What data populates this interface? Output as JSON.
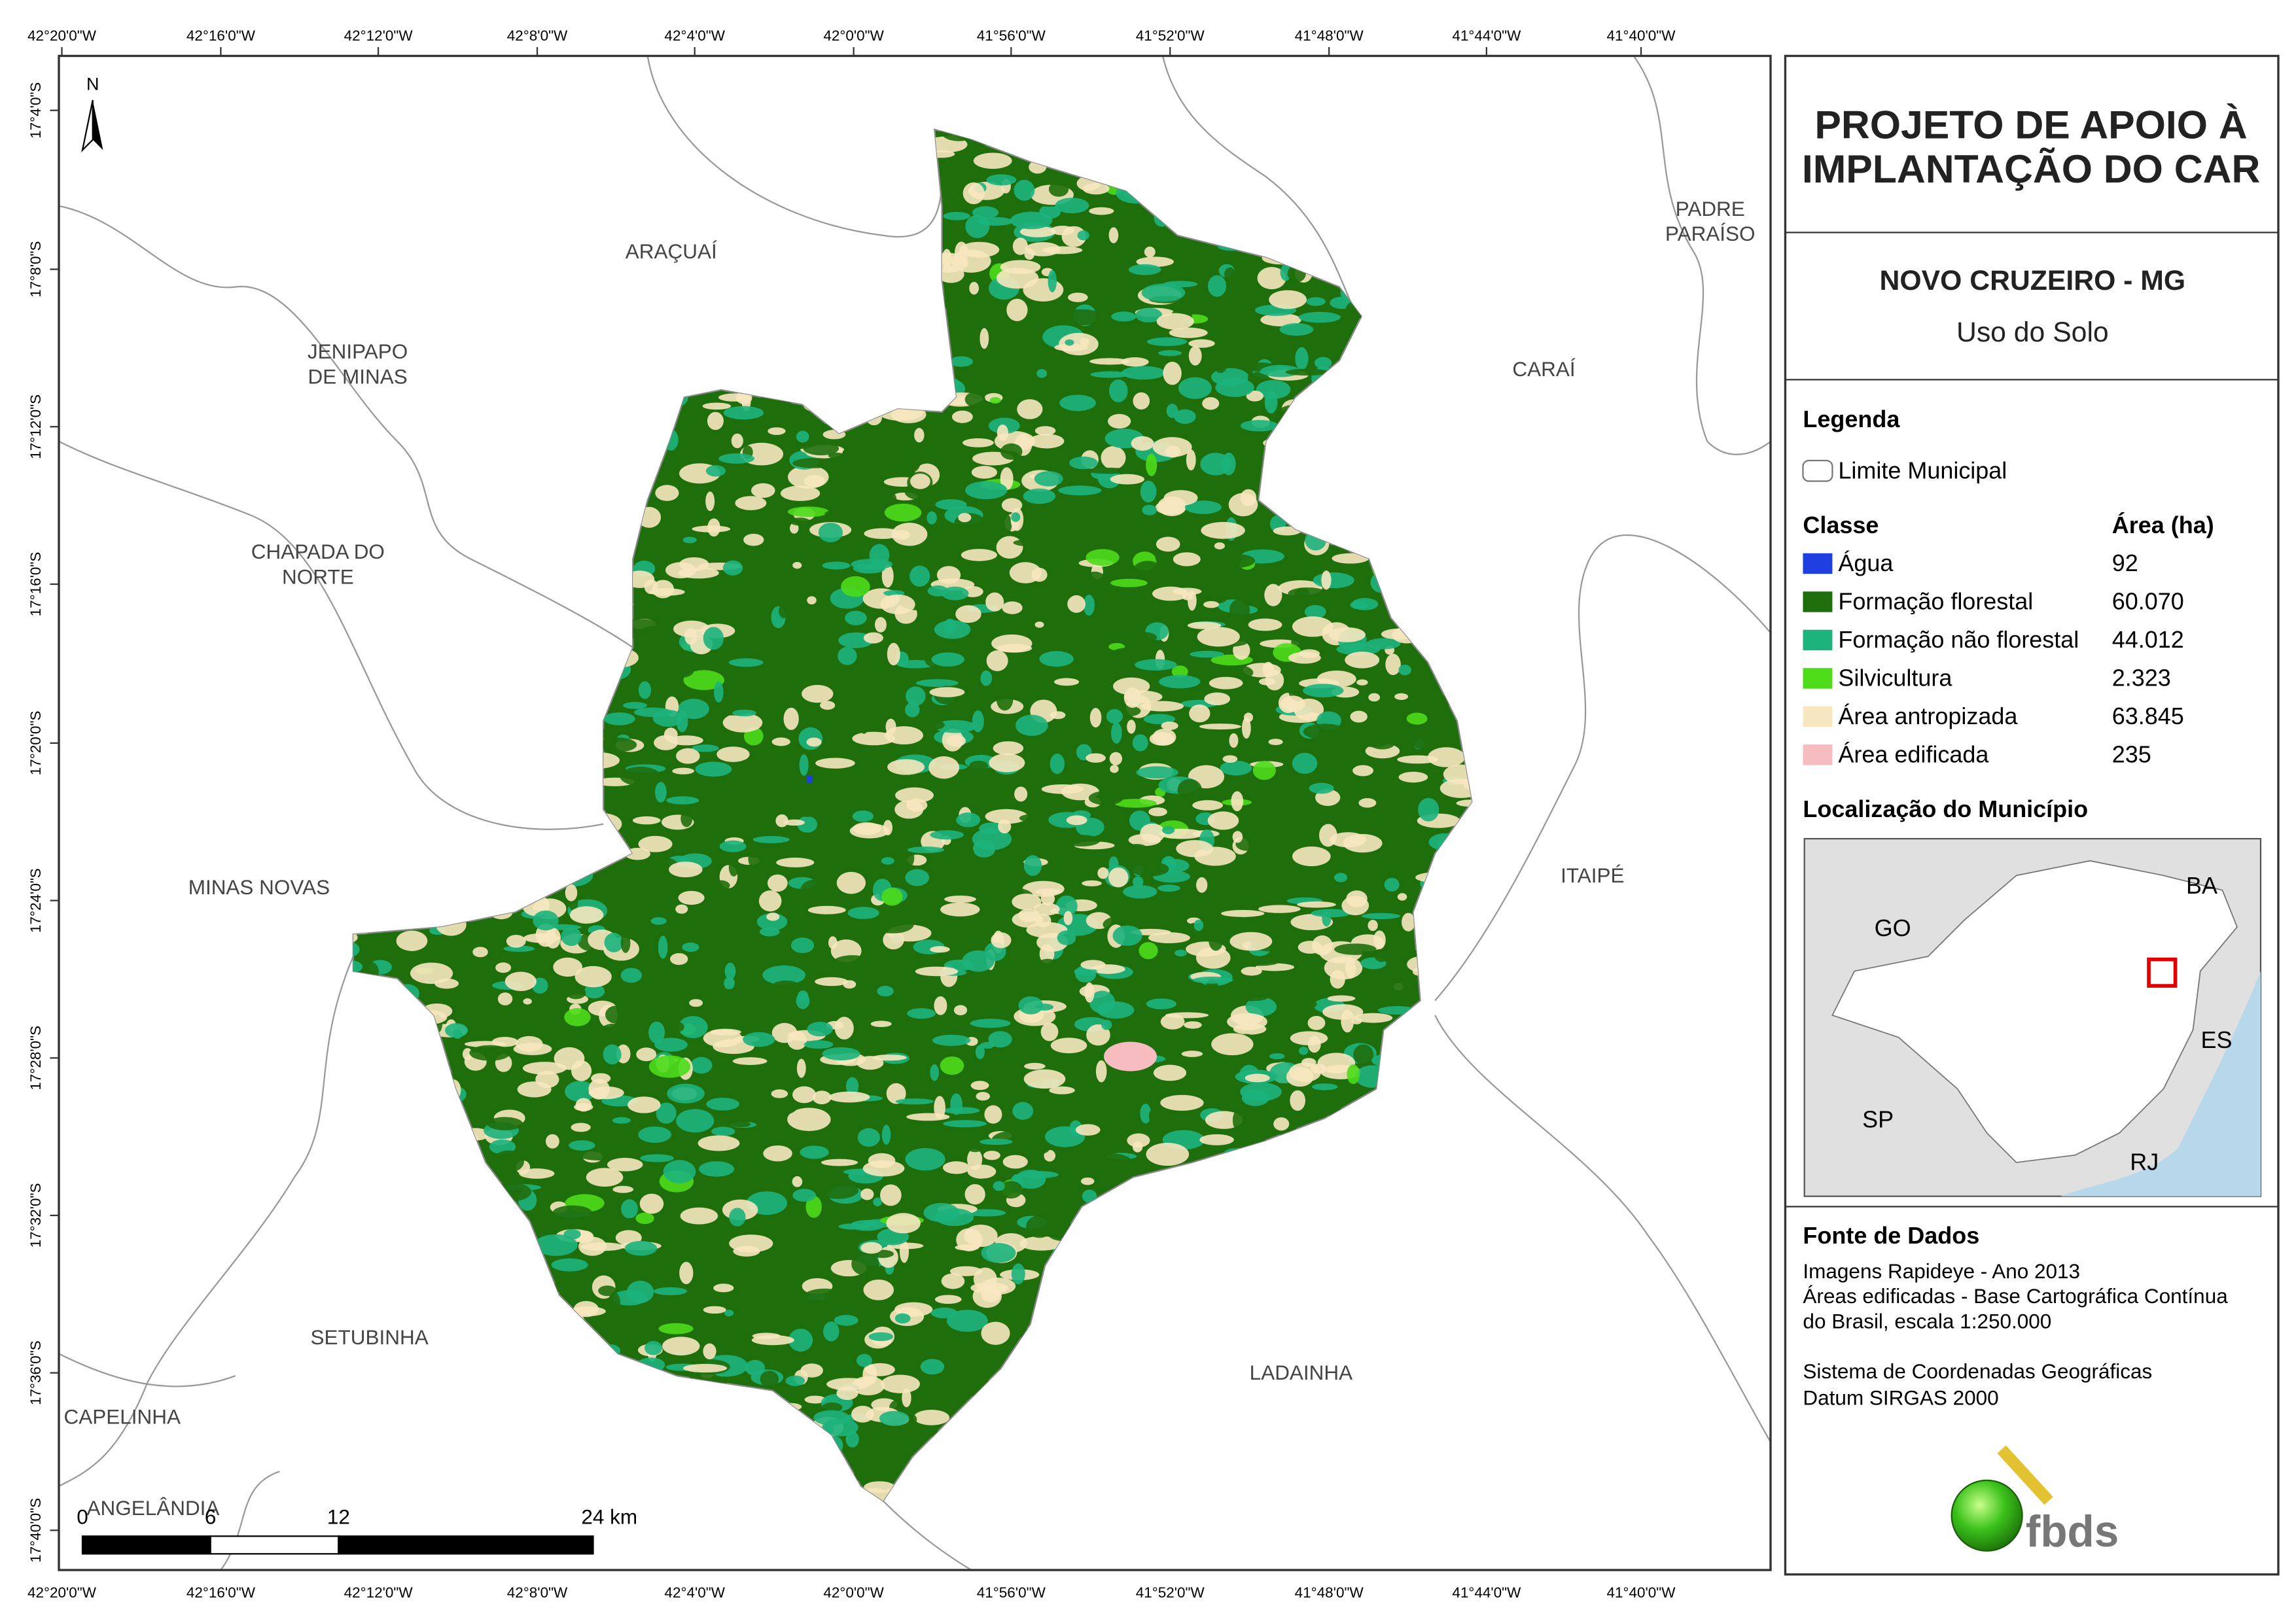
{
  "coordinates": {
    "longitudes": [
      "42°20'0\"W",
      "42°16'0\"W",
      "42°12'0\"W",
      "42°8'0\"W",
      "42°4'0\"W",
      "42°0'0\"W",
      "41°56'0\"W",
      "41°52'0\"W",
      "41°48'0\"W",
      "41°44'0\"W",
      "41°40'0\"W"
    ],
    "latitudes": [
      "17°4'0\"S",
      "17°8'0\"S",
      "17°12'0\"S",
      "17°16'0\"S",
      "17°20'0\"S",
      "17°24'0\"S",
      "17°28'0\"S",
      "17°32'0\"S",
      "17°36'0\"S",
      "17°40'0\"S"
    ]
  },
  "north_arrow": "N",
  "places": [
    [
      "ARAÇUAÍ"
    ],
    [
      "JENIPAPO",
      "DE MINAS"
    ],
    [
      "CHAPADA DO",
      "NORTE"
    ],
    [
      "MINAS NOVAS"
    ],
    [
      "SETUBINHA"
    ],
    [
      "CAPELINHA"
    ],
    [
      "ANGELÂNDIA"
    ],
    [
      "LADAINHA"
    ],
    [
      "ITAIPÉ"
    ],
    [
      "CARAÍ"
    ],
    [
      "PADRE",
      "PARAÍSO"
    ]
  ],
  "header": {
    "title": [
      "PROJETO DE APOIO À",
      "IMPLANTAÇÃO DO CAR"
    ],
    "municipality": "NOVO CRUZEIRO - MG",
    "subtitle": "Uso do Solo"
  },
  "legend": {
    "title": "Legenda",
    "boundary": "Limite Municipal",
    "class_header": "Classe",
    "area_header": "Área (ha)",
    "classes": [
      {
        "name": "Água",
        "area": "92",
        "color": "#1f3fe0"
      },
      {
        "name": "Formação florestal",
        "area": "60.070",
        "color": "#1f6e0c"
      },
      {
        "name": "Formação não florestal",
        "area": "44.012",
        "color": "#1db37c"
      },
      {
        "name": "Silvicultura",
        "area": "2.323",
        "color": "#4ddb1a"
      },
      {
        "name": "Área antropizada",
        "area": "63.845",
        "color": "#f7e7c0"
      },
      {
        "name": "Área edificada",
        "area": "235",
        "color": "#f7bcc0"
      }
    ]
  },
  "location": {
    "title": "Localização do Município",
    "states": [
      "GO",
      "BA",
      "ES",
      "SP",
      "RJ"
    ]
  },
  "sources": {
    "title": "Fonte de Dados",
    "lines": [
      "Imagens Rapideye - Ano 2013",
      "Áreas edificadas - Base Cartográfica Contínua",
      "do Brasil, escala 1:250.000",
      "Sistema de Coordenadas Geográficas",
      "Datum SIRGAS 2000"
    ]
  },
  "scale_bar": {
    "labels": [
      "0",
      "6",
      "12",
      "24 km"
    ]
  },
  "logo": "fbds"
}
